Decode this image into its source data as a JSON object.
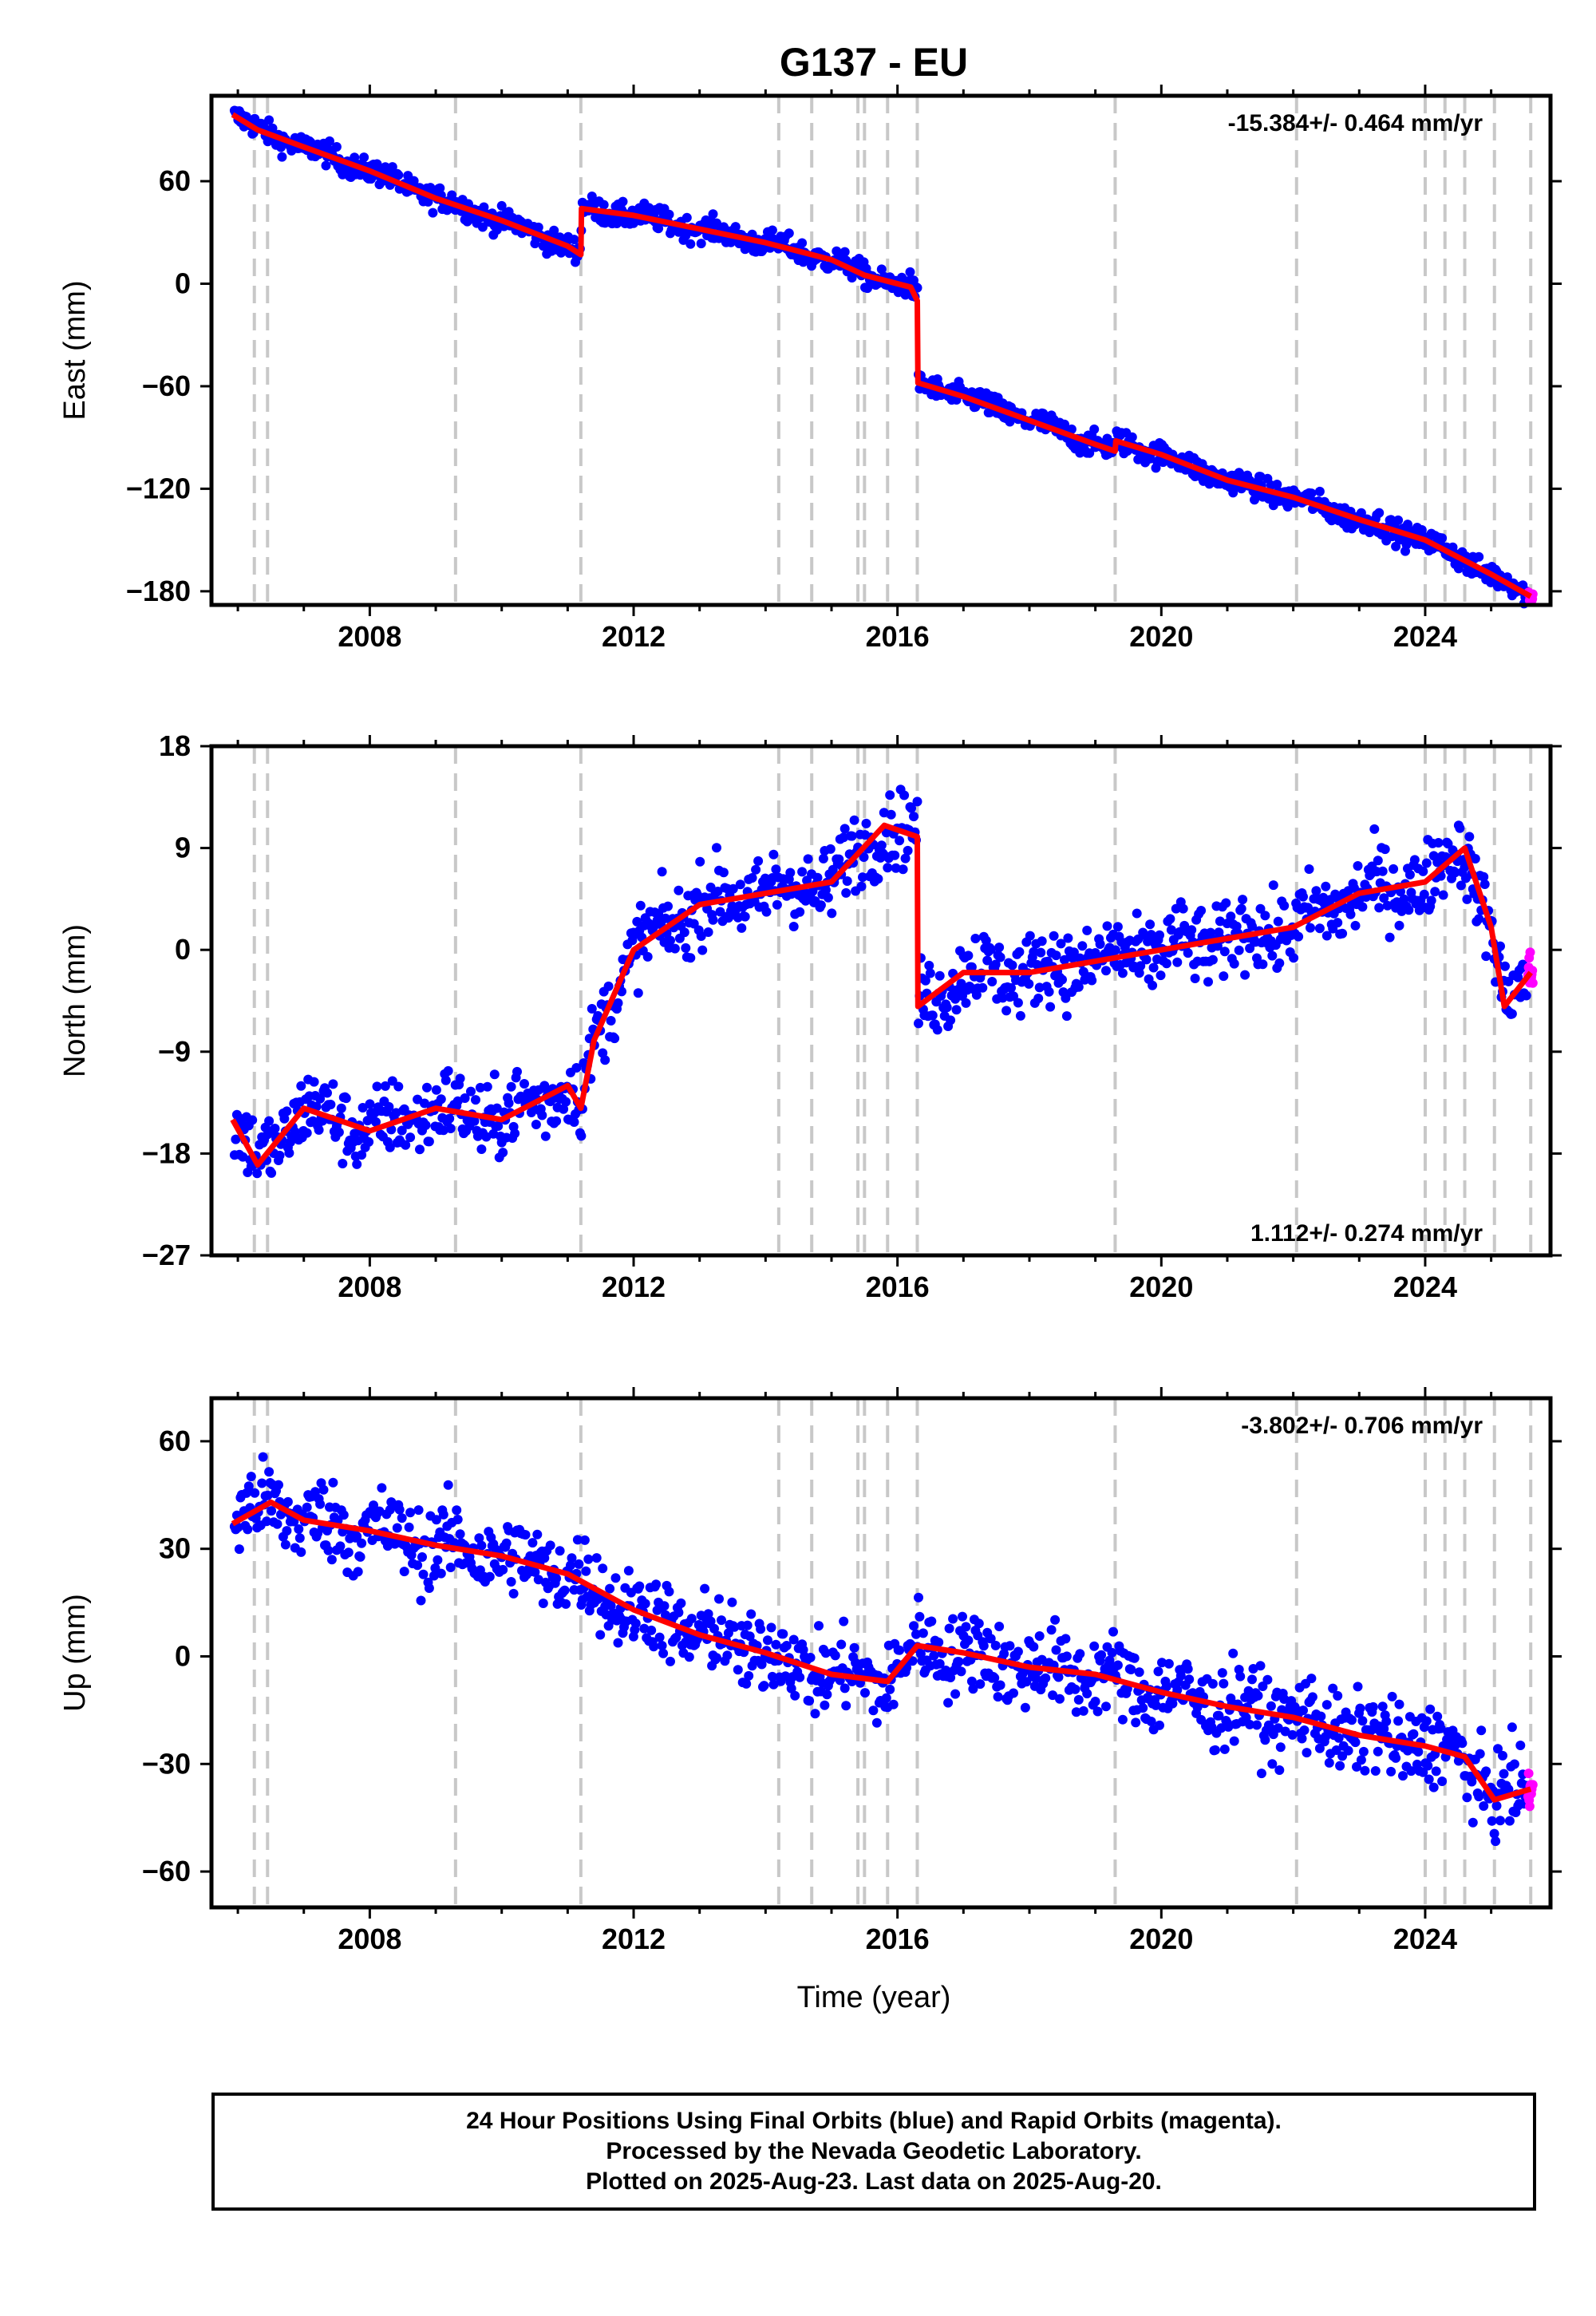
{
  "chart_data": {
    "title": "G137 - EU",
    "xlabel": "Time (year)",
    "x_tick_labels": [
      "2008",
      "2012",
      "2016",
      "2020",
      "2024"
    ],
    "xlim": [
      2005.6,
      2025.9
    ],
    "colors": {
      "final": "#0000ff",
      "rapid": "#ff00ff",
      "model": "#ff0000",
      "offsets": "#c8c8c8"
    },
    "offset_epochs": [
      2006.25,
      2006.45,
      2009.3,
      2011.2,
      2014.2,
      2014.7,
      2015.4,
      2015.5,
      2015.85,
      2016.3,
      2019.3,
      2022.05,
      2024.0,
      2024.3,
      2024.6,
      2025.05,
      2025.6
    ],
    "panels": [
      {
        "type": "scatter",
        "ylabel": "East (mm)",
        "ylim": [
          -188,
          110
        ],
        "yticks": [
          60,
          0,
          -60,
          -120,
          -180
        ],
        "ytick_labels": [
          "60",
          "0",
          "−60",
          "−120",
          "−180"
        ],
        "rate": "-15.384+/- 0.464 mm/yr",
        "rate_position": "top-right",
        "model_points": [
          [
            2005.92,
            99
          ],
          [
            2006.3,
            90
          ],
          [
            2007.0,
            80
          ],
          [
            2008.0,
            66
          ],
          [
            2009.0,
            50
          ],
          [
            2010.0,
            37
          ],
          [
            2011.0,
            22
          ],
          [
            2011.2,
            17
          ],
          [
            2011.21,
            44
          ],
          [
            2012.0,
            40
          ],
          [
            2013.0,
            32
          ],
          [
            2014.0,
            24
          ],
          [
            2015.0,
            14
          ],
          [
            2015.5,
            5
          ],
          [
            2016.2,
            -2
          ],
          [
            2016.3,
            -10
          ],
          [
            2016.31,
            -58
          ],
          [
            2017.0,
            -66
          ],
          [
            2018.0,
            -80
          ],
          [
            2019.0,
            -94
          ],
          [
            2019.3,
            -98
          ],
          [
            2019.31,
            -92
          ],
          [
            2020.0,
            -100
          ],
          [
            2021.0,
            -115
          ],
          [
            2022.0,
            -125
          ],
          [
            2023.0,
            -138
          ],
          [
            2024.0,
            -150
          ],
          [
            2024.5,
            -160
          ],
          [
            2025.0,
            -170
          ],
          [
            2025.6,
            -183
          ]
        ],
        "scatter_spread": 5
      },
      {
        "type": "scatter",
        "ylabel": "North (mm)",
        "ylim": [
          -27,
          18
        ],
        "yticks": [
          18,
          9,
          0,
          -9,
          -18,
          -27
        ],
        "ytick_labels": [
          "18",
          "9",
          "0",
          "−9",
          "−18",
          "−27"
        ],
        "rate": "1.112+/- 0.274 mm/yr",
        "rate_position": "bottom-right",
        "model_points": [
          [
            2005.92,
            -15
          ],
          [
            2006.3,
            -19
          ],
          [
            2007.0,
            -14
          ],
          [
            2008.0,
            -16
          ],
          [
            2009.0,
            -14
          ],
          [
            2010.0,
            -15
          ],
          [
            2011.0,
            -12
          ],
          [
            2011.2,
            -14
          ],
          [
            2011.4,
            -8
          ],
          [
            2012.0,
            0
          ],
          [
            2013.0,
            4
          ],
          [
            2014.0,
            5
          ],
          [
            2015.0,
            6
          ],
          [
            2015.8,
            11
          ],
          [
            2016.3,
            10
          ],
          [
            2016.31,
            -5
          ],
          [
            2017.0,
            -2
          ],
          [
            2018.0,
            -2
          ],
          [
            2019.0,
            -1
          ],
          [
            2020.0,
            0
          ],
          [
            2021.0,
            1
          ],
          [
            2022.0,
            2
          ],
          [
            2023.0,
            5
          ],
          [
            2024.0,
            6
          ],
          [
            2024.6,
            9
          ],
          [
            2025.0,
            2
          ],
          [
            2025.2,
            -5
          ],
          [
            2025.6,
            -2
          ]
        ],
        "scatter_spread": 2.4
      },
      {
        "type": "scatter",
        "ylabel": "Up (mm)",
        "ylim": [
          -70,
          72
        ],
        "yticks": [
          60,
          30,
          0,
          -30,
          -60
        ],
        "ytick_labels": [
          "60",
          "30",
          "0",
          "−30",
          "−60"
        ],
        "rate": "-3.802+/- 0.706 mm/yr",
        "rate_position": "top-right",
        "model_points": [
          [
            2005.92,
            37
          ],
          [
            2006.5,
            43
          ],
          [
            2007.0,
            38
          ],
          [
            2008.0,
            35
          ],
          [
            2009.0,
            31
          ],
          [
            2010.0,
            28
          ],
          [
            2011.0,
            23
          ],
          [
            2012.0,
            13
          ],
          [
            2013.0,
            6
          ],
          [
            2014.0,
            1
          ],
          [
            2015.0,
            -5
          ],
          [
            2015.85,
            -7
          ],
          [
            2016.3,
            3
          ],
          [
            2017.0,
            1
          ],
          [
            2018.0,
            -3
          ],
          [
            2019.0,
            -5
          ],
          [
            2020.0,
            -10
          ],
          [
            2021.0,
            -14
          ],
          [
            2022.0,
            -17
          ],
          [
            2023.0,
            -22
          ],
          [
            2024.0,
            -25
          ],
          [
            2024.6,
            -28
          ],
          [
            2025.05,
            -40
          ],
          [
            2025.6,
            -37
          ]
        ],
        "scatter_spread": 8
      }
    ]
  },
  "footer": {
    "line1": "24 Hour Positions Using Final Orbits (blue) and Rapid Orbits (magenta).",
    "line2": "Processed by the Nevada Geodetic Laboratory.",
    "line3": "Plotted on 2025-Aug-23. Last data on 2025-Aug-20."
  }
}
